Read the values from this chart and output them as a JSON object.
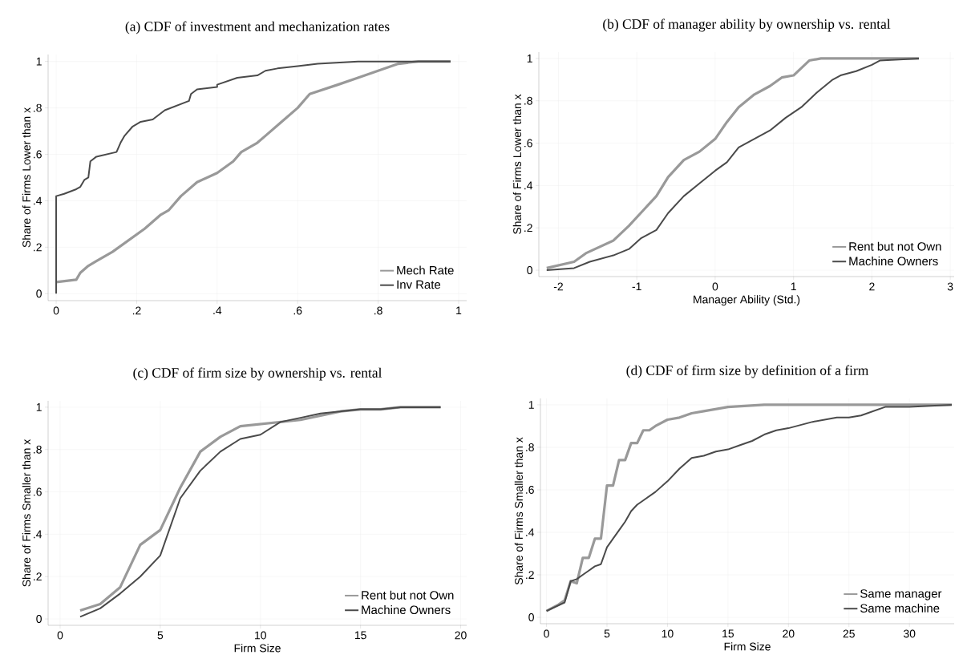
{
  "chart_data": [
    {
      "type": "line",
      "title": "(a) CDF of investment and mechanization rates",
      "ylabel": "Share of Firms Lower than x",
      "xlim": [
        -0.02,
        1.02
      ],
      "ylim": [
        -0.03,
        1.03
      ],
      "xticks": [
        0,
        {
          "value": 0.2,
          "label": ".2"
        },
        {
          "value": 0.4,
          "label": ".4"
        },
        {
          "value": 0.6,
          "label": ".6"
        },
        {
          "value": 0.8,
          "label": ".8"
        },
        1
      ],
      "yticks": [
        0,
        {
          "value": 0.2,
          "label": ".2"
        },
        {
          "value": 0.4,
          "label": ".4"
        },
        {
          "value": 0.6,
          "label": ".6"
        },
        {
          "value": 0.8,
          "label": ".8"
        },
        1
      ],
      "grid": true,
      "legend": "bottom right",
      "series": [
        {
          "name": "Mech Rate",
          "color": "#999999",
          "x": [
            0,
            0.05,
            0.06,
            0.08,
            0.1,
            0.14,
            0.18,
            0.22,
            0.26,
            0.28,
            0.31,
            0.35,
            0.4,
            0.44,
            0.46,
            0.5,
            0.52,
            0.56,
            0.6,
            0.63,
            0.7,
            0.75,
            0.8,
            0.85,
            0.9,
            0.98
          ],
          "values": [
            0.05,
            0.06,
            0.09,
            0.12,
            0.14,
            0.18,
            0.23,
            0.28,
            0.34,
            0.36,
            0.42,
            0.48,
            0.52,
            0.57,
            0.61,
            0.65,
            0.68,
            0.74,
            0.8,
            0.86,
            0.9,
            0.93,
            0.96,
            0.99,
            1.0,
            1.0
          ]
        },
        {
          "name": "Inv Rate",
          "color": "#4a4a4a",
          "x": [
            0,
            0,
            0.02,
            0.05,
            0.06,
            0.07,
            0.08,
            0.085,
            0.1,
            0.15,
            0.16,
            0.17,
            0.19,
            0.21,
            0.24,
            0.27,
            0.3,
            0.33,
            0.335,
            0.35,
            0.4,
            0.4,
            0.45,
            0.5,
            0.52,
            0.55,
            0.6,
            0.65,
            0.75,
            0.98
          ],
          "values": [
            0.0,
            0.42,
            0.43,
            0.45,
            0.46,
            0.49,
            0.5,
            0.57,
            0.59,
            0.61,
            0.65,
            0.68,
            0.72,
            0.74,
            0.75,
            0.79,
            0.81,
            0.83,
            0.86,
            0.88,
            0.89,
            0.9,
            0.93,
            0.94,
            0.96,
            0.97,
            0.98,
            0.99,
            1.0,
            1.0
          ]
        }
      ]
    },
    {
      "type": "line",
      "title": "(b) CDF of manager ability by ownership vs. rental",
      "xlabel": "Manager Ability (Std.)",
      "ylabel": "Share of Firms Lower than x",
      "xlim": [
        -2.25,
        3.05
      ],
      "ylim": [
        -0.03,
        1.03
      ],
      "xticks": [
        -2,
        -1,
        0,
        1,
        2,
        3
      ],
      "yticks": [
        0,
        {
          "value": 0.2,
          "label": ".2"
        },
        {
          "value": 0.4,
          "label": ".4"
        },
        {
          "value": 0.6,
          "label": ".6"
        },
        {
          "value": 0.8,
          "label": ".8"
        },
        1
      ],
      "grid": true,
      "legend": "bottom right",
      "series": [
        {
          "name": "Rent but not Own",
          "color": "#999999",
          "x": [
            -2.15,
            -1.8,
            -1.65,
            -1.3,
            -1.1,
            -0.95,
            -0.75,
            -0.6,
            -0.4,
            -0.2,
            0,
            0.15,
            0.3,
            0.5,
            0.7,
            0.85,
            1.0,
            1.2,
            1.35,
            2.6
          ],
          "values": [
            0.01,
            0.04,
            0.08,
            0.14,
            0.21,
            0.27,
            0.35,
            0.44,
            0.52,
            0.56,
            0.62,
            0.7,
            0.77,
            0.83,
            0.87,
            0.91,
            0.92,
            0.99,
            1.0,
            1.0
          ]
        },
        {
          "name": "Machine Owners",
          "color": "#4a4a4a",
          "x": [
            -2.15,
            -1.8,
            -1.6,
            -1.3,
            -1.1,
            -0.95,
            -0.75,
            -0.6,
            -0.4,
            -0.2,
            0,
            0.15,
            0.3,
            0.5,
            0.7,
            0.9,
            1.1,
            1.3,
            1.5,
            1.6,
            1.8,
            2.0,
            2.1,
            2.6
          ],
          "values": [
            0.0,
            0.01,
            0.04,
            0.07,
            0.1,
            0.15,
            0.19,
            0.27,
            0.35,
            0.41,
            0.47,
            0.51,
            0.58,
            0.62,
            0.66,
            0.72,
            0.77,
            0.84,
            0.9,
            0.92,
            0.94,
            0.97,
            0.99,
            1.0
          ]
        }
      ]
    },
    {
      "type": "line",
      "title": "(c) CDF of firm size by ownership vs. rental",
      "xlabel": "Firm Size",
      "ylabel": "Share of Firms Smaller than x",
      "xlim": [
        -0.6,
        20.3
      ],
      "ylim": [
        -0.03,
        1.03
      ],
      "xticks": [
        0,
        5,
        10,
        15,
        20
      ],
      "yticks": [
        0,
        {
          "value": 0.2,
          "label": ".2"
        },
        {
          "value": 0.4,
          "label": ".4"
        },
        {
          "value": 0.6,
          "label": ".6"
        },
        {
          "value": 0.8,
          "label": ".8"
        },
        1
      ],
      "grid": true,
      "legend": "bottom right",
      "series": [
        {
          "name": "Rent but not Own",
          "color": "#999999",
          "x": [
            1,
            2,
            3,
            4,
            5,
            6,
            7,
            8,
            9,
            10,
            11,
            12,
            13,
            14,
            15,
            16,
            17,
            19
          ],
          "values": [
            0.04,
            0.07,
            0.15,
            0.35,
            0.42,
            0.62,
            0.79,
            0.86,
            0.91,
            0.92,
            0.93,
            0.94,
            0.96,
            0.98,
            0.99,
            0.99,
            1.0,
            1.0
          ]
        },
        {
          "name": "Machine Owners",
          "color": "#4a4a4a",
          "x": [
            1,
            2,
            3,
            4,
            5,
            6,
            7,
            8,
            9,
            10,
            11,
            12,
            13,
            14,
            15,
            16,
            17,
            19
          ],
          "values": [
            0.01,
            0.05,
            0.12,
            0.2,
            0.3,
            0.57,
            0.7,
            0.79,
            0.85,
            0.87,
            0.93,
            0.95,
            0.97,
            0.98,
            0.99,
            0.99,
            1.0,
            1.0
          ]
        }
      ]
    },
    {
      "type": "line",
      "title": "(d) CDF of firm size by definition of a firm",
      "xlabel": "Firm Size",
      "ylabel": "Share of Firms Smaller than x",
      "xlim": [
        -0.5,
        33.7
      ],
      "ylim": [
        -0.03,
        1.03
      ],
      "xticks": [
        0,
        5,
        10,
        15,
        20,
        25,
        30
      ],
      "yticks": [
        0,
        {
          "value": 0.2,
          "label": ".2"
        },
        {
          "value": 0.4,
          "label": ".4"
        },
        {
          "value": 0.6,
          "label": ".6"
        },
        {
          "value": 0.8,
          "label": ".8"
        },
        1
      ],
      "grid": true,
      "legend": "bottom right",
      "series": [
        {
          "name": "Same manager",
          "color": "#999999",
          "x": [
            0,
            1,
            1.5,
            2,
            2.5,
            3,
            3.5,
            4,
            4.5,
            5,
            5.5,
            6,
            6.5,
            7,
            7.5,
            8,
            8.5,
            9,
            10,
            11,
            12,
            13,
            15,
            18,
            33.5
          ],
          "values": [
            0.03,
            0.06,
            0.08,
            0.17,
            0.16,
            0.28,
            0.28,
            0.37,
            0.37,
            0.62,
            0.62,
            0.74,
            0.74,
            0.82,
            0.82,
            0.88,
            0.88,
            0.9,
            0.93,
            0.94,
            0.96,
            0.97,
            0.99,
            1.0,
            1.0
          ]
        },
        {
          "name": "Same machine",
          "color": "#4a4a4a",
          "x": [
            0,
            1.5,
            2,
            2.5,
            3,
            3.5,
            4,
            4.5,
            5,
            6,
            6.5,
            7,
            7.5,
            8,
            9,
            10,
            11,
            12,
            13,
            14,
            15,
            16,
            17,
            18,
            19,
            20,
            22,
            24,
            25,
            26,
            28,
            30,
            33.5
          ],
          "values": [
            0.03,
            0.07,
            0.17,
            0.18,
            0.2,
            0.22,
            0.24,
            0.25,
            0.33,
            0.41,
            0.45,
            0.5,
            0.53,
            0.55,
            0.59,
            0.64,
            0.7,
            0.75,
            0.76,
            0.78,
            0.79,
            0.81,
            0.83,
            0.86,
            0.88,
            0.89,
            0.92,
            0.94,
            0.94,
            0.95,
            0.99,
            0.99,
            1.0
          ]
        }
      ]
    }
  ]
}
